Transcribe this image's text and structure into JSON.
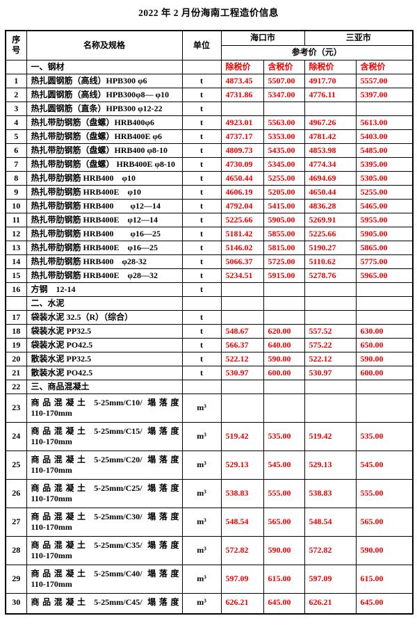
{
  "page_title": "2022 年 2 月份海南工程造价信息",
  "colors": {
    "price_red": "#ee0000",
    "text_black": "#000000",
    "border_black": "#000000"
  },
  "table": {
    "header": {
      "col_no_lines": [
        "序",
        "号"
      ],
      "col_name": "名称及规格",
      "col_unit": "单位",
      "city1": "海口市",
      "city2": "三亚市",
      "ref_price": "参考价（元）"
    },
    "rows": [
      {
        "no": "",
        "type": "section-labels",
        "name": "一、钢材",
        "unit": "",
        "labels": [
          "除税价",
          "含税价",
          "除税价",
          "含税价"
        ]
      },
      {
        "no": "1",
        "name": "热扎圆钢筋（高线）HPB300 φ6",
        "unit": "t",
        "prices": [
          "4873.45",
          "5507.00",
          "4917.70",
          "5557.00"
        ]
      },
      {
        "no": "2",
        "name": "热扎圆钢筋（高线）HPB300φ8— φ10",
        "unit": "t",
        "prices": [
          "4731.86",
          "5347.00",
          "4776.11",
          "5397.00"
        ]
      },
      {
        "no": "3",
        "name": "热扎圆钢筋（直条）HPB300 φ12-22",
        "unit": "t",
        "prices": [
          "",
          "",
          "",
          ""
        ]
      },
      {
        "no": "4",
        "name": "热扎带肋钢筋（盘螺）HRB400φ6",
        "unit": "t",
        "prices": [
          "4923.01",
          "5563.00",
          "4967.26",
          "5613.00"
        ]
      },
      {
        "no": "5",
        "name": "热扎带肋钢筋（盘螺）HRB400E φ6",
        "unit": "t",
        "prices": [
          "4737.17",
          "5353.00",
          "4781.42",
          "5403.00"
        ]
      },
      {
        "no": "6",
        "name": "热扎带肋钢筋（盘螺）HRB400 φ8-10",
        "unit": "t",
        "prices": [
          "4809.73",
          "5435.00",
          "4853.98",
          "5485.00"
        ]
      },
      {
        "no": "7",
        "name": "热扎带肋钢筋（盘螺） HRB400E φ8-10",
        "unit": "t",
        "prices": [
          "4730.09",
          "5345.00",
          "4774.34",
          "5395.00"
        ]
      },
      {
        "no": "8",
        "name": "热扎带肋钢筋 HRB400　φ10",
        "unit": "t",
        "prices": [
          "4650.44",
          "5255.00",
          "4694.69",
          "5305.00"
        ]
      },
      {
        "no": "9",
        "name": "热扎带肋钢筋 HRB400E　φ10",
        "unit": "t",
        "prices": [
          "4606.19",
          "5205.00",
          "4650.44",
          "5255.00"
        ]
      },
      {
        "no": "10",
        "name": "热扎带肋钢筋 HRB400　　φ12—14",
        "unit": "t",
        "prices": [
          "4792.04",
          "5415.00",
          "4836.28",
          "5465.00"
        ]
      },
      {
        "no": "11",
        "name": "热扎带肋钢筋 HRB400E　φ12—14",
        "unit": "t",
        "prices": [
          "5225.66",
          "5905.00",
          "5269.91",
          "5955.00"
        ]
      },
      {
        "no": "12",
        "name": "热扎带肋钢筋 HRB400　　φ16—25",
        "unit": "t",
        "prices": [
          "5181.42",
          "5855.00",
          "5225.66",
          "5905.00"
        ]
      },
      {
        "no": "13",
        "name": "热扎带肋钢筋 HRB400E　φ16—25",
        "unit": "t",
        "prices": [
          "5146.02",
          "5815.00",
          "5190.27",
          "5865.00"
        ]
      },
      {
        "no": "14",
        "name": "热扎带肋钢筋 HRB400　φ28-32",
        "unit": "t",
        "prices": [
          "5066.37",
          "5725.00",
          "5110.62",
          "5775.00"
        ]
      },
      {
        "no": "15",
        "name": "热扎带肋钢筋 HRB400E　φ28—32",
        "unit": "t",
        "prices": [
          "5234.51",
          "5915.00",
          "5278.76",
          "5965.00"
        ]
      },
      {
        "no": "16",
        "name": "方钢　12-14",
        "unit": "t",
        "prices": [
          "",
          "",
          "",
          ""
        ]
      },
      {
        "no": "",
        "type": "section",
        "name": "二、水泥",
        "unit": "",
        "prices": [
          "",
          "",
          "",
          ""
        ]
      },
      {
        "no": "17",
        "name": "袋装水泥 32.5（R）（综合）",
        "unit": "t",
        "prices": [
          "",
          "",
          "",
          ""
        ]
      },
      {
        "no": "18",
        "name": "袋装水泥 PP32.5",
        "unit": "t",
        "prices": [
          "548.67",
          "620.00",
          "557.52",
          "630.00"
        ]
      },
      {
        "no": "19",
        "name": "袋装水泥 PO42.5",
        "unit": "t",
        "prices": [
          "566.37",
          "640.00",
          "575.22",
          "650.00"
        ]
      },
      {
        "no": "20",
        "name": "散装水泥 PP32.5",
        "unit": "t",
        "prices": [
          "522.12",
          "590.00",
          "522.12",
          "590.00"
        ]
      },
      {
        "no": "21",
        "name": "散装水泥 PO42.5",
        "unit": "t",
        "prices": [
          "530.97",
          "600.00",
          "530.97",
          "600.00"
        ]
      },
      {
        "no": "22",
        "type": "section",
        "name": "三、商品混凝土",
        "unit": "",
        "prices": [
          "",
          "",
          "",
          ""
        ]
      },
      {
        "no": "23",
        "type": "double",
        "name_line1": "商品混凝土 5-25mm/C10/ 塌落度",
        "name_line2": "110-170mm",
        "unit": "m³",
        "prices": [
          "",
          "",
          "",
          ""
        ]
      },
      {
        "no": "24",
        "type": "double",
        "name_line1": "商品混凝土 5-25mm/C15/ 塌落度",
        "name_line2": "110-170mm",
        "unit": "m³",
        "prices": [
          "519.42",
          "535.00",
          "519.42",
          "535.00"
        ]
      },
      {
        "no": "25",
        "type": "double",
        "name_line1": "商品混凝土 5-25mm/C20/ 塌落度",
        "name_line2": "110-170mm",
        "unit": "m³",
        "prices": [
          "529.13",
          "545.00",
          "529.13",
          "545.00"
        ]
      },
      {
        "no": "26",
        "type": "double",
        "name_line1": "商品混凝土 5-25mm/C25/ 塌落度",
        "name_line2": "110-170mm",
        "unit": "m³",
        "prices": [
          "538.83",
          "555.00",
          "538.83",
          "555.00"
        ]
      },
      {
        "no": "27",
        "type": "double",
        "name_line1": "商品混凝土 5-25mm/C30/ 塌落度",
        "name_line2": "110-170mm",
        "unit": "m³",
        "prices": [
          "548.54",
          "565.00",
          "548.54",
          "565.00"
        ]
      },
      {
        "no": "28",
        "type": "double",
        "name_line1": "商品混凝土 5-25mm/C35/ 塌落度",
        "name_line2": "110-170mm",
        "unit": "m³",
        "prices": [
          "572.82",
          "590.00",
          "572.82",
          "590.00"
        ]
      },
      {
        "no": "29",
        "type": "double",
        "name_line1": "商品混凝土 5-25mm/C40/ 塌落度",
        "name_line2": "110-170mm",
        "unit": "m³",
        "prices": [
          "597.09",
          "615.00",
          "597.09",
          "615.00"
        ]
      },
      {
        "no": "30",
        "type": "double-cut",
        "name_line1": "商品混凝土 5-25mm/C45/ 塌落度",
        "name_line2": "",
        "unit": "m³",
        "prices": [
          "626.21",
          "645.00",
          "626.21",
          "645.00"
        ]
      }
    ]
  }
}
